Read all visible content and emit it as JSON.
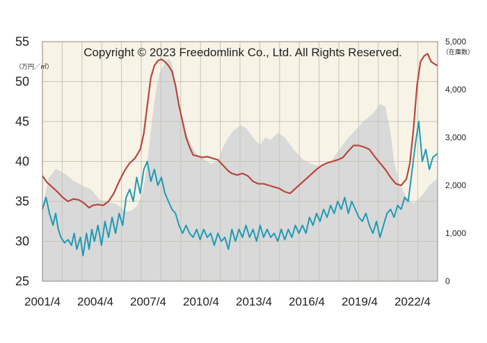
{
  "chart_data": {
    "type": "line",
    "title": "",
    "copyright": "Copyright © 2023 Freedomlink Co., Ltd. All Rights Reserved.",
    "y_left_unit": "（万円／㎡）",
    "y_right_unit": "（在庫数）",
    "y_left_range": [
      25,
      55
    ],
    "y_left_ticks": [
      "25",
      "30",
      "35",
      "40",
      "45",
      "50",
      "55"
    ],
    "y_right_range": [
      0,
      5000
    ],
    "y_right_ticks": [
      "0",
      "1,000",
      "2,000",
      "3,000",
      "4,000",
      "5,000"
    ],
    "x_range": [
      2001.25,
      2023.67
    ],
    "x_ticks": [
      {
        "value": 2001.25,
        "label": "2001/4"
      },
      {
        "value": 2004.25,
        "label": "2004/4"
      },
      {
        "value": 2007.25,
        "label": "2007/4"
      },
      {
        "value": 2010.25,
        "label": "2010/4"
      },
      {
        "value": 2013.25,
        "label": "2013/4"
      },
      {
        "value": 2016.25,
        "label": "2016/4"
      },
      {
        "value": 2019.25,
        "label": "2019/4"
      },
      {
        "value": 2022.25,
        "label": "2022/4"
      }
    ],
    "grid": true,
    "colors": {
      "plot_bg": "#f7f3e6",
      "grid": "#c8c3b8",
      "inventory_area": "#d9d9d9",
      "red_series": "#b8453b",
      "blue_series": "#1e9ab4"
    },
    "series": [
      {
        "kind": "area",
        "axis": "right",
        "points": [
          [
            2001.25,
            1550
          ],
          [
            2001.6,
            2150
          ],
          [
            2002.0,
            2350
          ],
          [
            2002.5,
            2250
          ],
          [
            2003.0,
            2100
          ],
          [
            2003.5,
            2000
          ],
          [
            2004.0,
            1920
          ],
          [
            2004.5,
            1700
          ],
          [
            2005.0,
            1650
          ],
          [
            2005.5,
            1600
          ],
          [
            2006.0,
            1450
          ],
          [
            2006.3,
            1470
          ],
          [
            2006.6,
            1560
          ],
          [
            2006.9,
            1800
          ],
          [
            2007.1,
            2200
          ],
          [
            2007.3,
            2800
          ],
          [
            2007.5,
            3450
          ],
          [
            2007.7,
            4000
          ],
          [
            2007.9,
            4350
          ],
          [
            2008.2,
            4550
          ],
          [
            2008.4,
            4650
          ],
          [
            2008.6,
            4550
          ],
          [
            2008.8,
            4100
          ],
          [
            2009.0,
            3600
          ],
          [
            2009.2,
            3300
          ],
          [
            2009.5,
            3000
          ],
          [
            2009.8,
            2780
          ],
          [
            2010.0,
            2650
          ],
          [
            2010.4,
            2550
          ],
          [
            2010.8,
            2450
          ],
          [
            2011.2,
            2500
          ],
          [
            2011.5,
            2800
          ],
          [
            2011.8,
            3000
          ],
          [
            2012.1,
            3150
          ],
          [
            2012.5,
            3250
          ],
          [
            2012.8,
            3200
          ],
          [
            2013.0,
            3100
          ],
          [
            2013.3,
            2950
          ],
          [
            2013.6,
            2850
          ],
          [
            2013.9,
            3000
          ],
          [
            2014.2,
            2950
          ],
          [
            2014.6,
            3100
          ],
          [
            2015.0,
            3000
          ],
          [
            2015.5,
            2750
          ],
          [
            2016.0,
            2550
          ],
          [
            2016.5,
            2450
          ],
          [
            2017.0,
            2400
          ],
          [
            2017.5,
            2450
          ],
          [
            2018.0,
            2700
          ],
          [
            2018.5,
            2950
          ],
          [
            2019.0,
            3150
          ],
          [
            2019.5,
            3350
          ],
          [
            2020.0,
            3500
          ],
          [
            2020.4,
            3700
          ],
          [
            2020.7,
            3650
          ],
          [
            2021.0,
            3100
          ],
          [
            2021.2,
            2500
          ],
          [
            2021.5,
            2050
          ],
          [
            2021.9,
            1750
          ],
          [
            2022.3,
            1620
          ],
          [
            2022.6,
            1720
          ],
          [
            2022.9,
            1850
          ],
          [
            2023.2,
            2000
          ],
          [
            2023.67,
            2150
          ]
        ]
      },
      {
        "kind": "line",
        "axis": "left",
        "color": "red",
        "points": [
          [
            2001.25,
            38.2
          ],
          [
            2001.5,
            37.4
          ],
          [
            2001.8,
            36.8
          ],
          [
            2002.1,
            36.2
          ],
          [
            2002.4,
            35.5
          ],
          [
            2002.7,
            35.0
          ],
          [
            2003.0,
            35.3
          ],
          [
            2003.3,
            35.2
          ],
          [
            2003.6,
            34.8
          ],
          [
            2003.9,
            34.2
          ],
          [
            2004.1,
            34.5
          ],
          [
            2004.4,
            34.6
          ],
          [
            2004.7,
            34.5
          ],
          [
            2005.0,
            35.0
          ],
          [
            2005.3,
            36.0
          ],
          [
            2005.6,
            37.5
          ],
          [
            2005.9,
            38.8
          ],
          [
            2006.2,
            39.8
          ],
          [
            2006.5,
            40.4
          ],
          [
            2006.8,
            41.5
          ],
          [
            2007.0,
            43.5
          ],
          [
            2007.2,
            47.0
          ],
          [
            2007.4,
            50.5
          ],
          [
            2007.6,
            52.0
          ],
          [
            2007.8,
            52.6
          ],
          [
            2008.0,
            52.8
          ],
          [
            2008.2,
            52.5
          ],
          [
            2008.4,
            52.0
          ],
          [
            2008.6,
            51.3
          ],
          [
            2008.8,
            49.5
          ],
          [
            2009.0,
            47.0
          ],
          [
            2009.2,
            45.0
          ],
          [
            2009.4,
            43.0
          ],
          [
            2009.6,
            41.8
          ],
          [
            2009.8,
            40.8
          ],
          [
            2010.0,
            40.7
          ],
          [
            2010.3,
            40.5
          ],
          [
            2010.6,
            40.6
          ],
          [
            2010.9,
            40.4
          ],
          [
            2011.2,
            40.2
          ],
          [
            2011.5,
            39.5
          ],
          [
            2011.8,
            38.8
          ],
          [
            2012.0,
            38.5
          ],
          [
            2012.3,
            38.3
          ],
          [
            2012.6,
            38.5
          ],
          [
            2012.9,
            38.2
          ],
          [
            2013.2,
            37.5
          ],
          [
            2013.5,
            37.2
          ],
          [
            2013.8,
            37.2
          ],
          [
            2014.1,
            37.0
          ],
          [
            2014.4,
            36.8
          ],
          [
            2014.7,
            36.6
          ],
          [
            2015.0,
            36.2
          ],
          [
            2015.3,
            36.0
          ],
          [
            2015.6,
            36.6
          ],
          [
            2015.9,
            37.2
          ],
          [
            2016.2,
            37.8
          ],
          [
            2016.5,
            38.4
          ],
          [
            2016.8,
            39.0
          ],
          [
            2017.1,
            39.5
          ],
          [
            2017.4,
            39.8
          ],
          [
            2017.7,
            40.0
          ],
          [
            2018.0,
            40.2
          ],
          [
            2018.3,
            40.5
          ],
          [
            2018.6,
            41.3
          ],
          [
            2018.9,
            42.0
          ],
          [
            2019.2,
            42.0
          ],
          [
            2019.5,
            41.8
          ],
          [
            2019.8,
            41.5
          ],
          [
            2020.1,
            40.6
          ],
          [
            2020.4,
            39.8
          ],
          [
            2020.7,
            39.0
          ],
          [
            2021.0,
            38.0
          ],
          [
            2021.3,
            37.2
          ],
          [
            2021.6,
            37.0
          ],
          [
            2021.9,
            37.8
          ],
          [
            2022.1,
            39.8
          ],
          [
            2022.3,
            44.0
          ],
          [
            2022.5,
            49.5
          ],
          [
            2022.7,
            52.5
          ],
          [
            2022.9,
            53.2
          ],
          [
            2023.1,
            53.5
          ],
          [
            2023.3,
            52.5
          ],
          [
            2023.5,
            52.2
          ],
          [
            2023.67,
            52.0
          ]
        ]
      },
      {
        "kind": "line",
        "axis": "left",
        "color": "blue",
        "points": [
          [
            2001.25,
            34.0
          ],
          [
            2001.45,
            35.5
          ],
          [
            2001.65,
            33.5
          ],
          [
            2001.85,
            32.0
          ],
          [
            2002.0,
            33.5
          ],
          [
            2002.15,
            31.5
          ],
          [
            2002.3,
            30.5
          ],
          [
            2002.5,
            29.8
          ],
          [
            2002.7,
            30.2
          ],
          [
            2002.9,
            29.5
          ],
          [
            2003.05,
            31.0
          ],
          [
            2003.2,
            29.0
          ],
          [
            2003.4,
            30.5
          ],
          [
            2003.55,
            28.2
          ],
          [
            2003.75,
            31.0
          ],
          [
            2003.9,
            29.0
          ],
          [
            2004.05,
            31.5
          ],
          [
            2004.2,
            30.0
          ],
          [
            2004.4,
            32.0
          ],
          [
            2004.6,
            29.5
          ],
          [
            2004.8,
            32.5
          ],
          [
            2005.0,
            30.5
          ],
          [
            2005.2,
            33.0
          ],
          [
            2005.4,
            31.0
          ],
          [
            2005.6,
            33.5
          ],
          [
            2005.8,
            32.0
          ],
          [
            2006.0,
            35.5
          ],
          [
            2006.2,
            36.5
          ],
          [
            2006.4,
            35.0
          ],
          [
            2006.6,
            38.0
          ],
          [
            2006.8,
            36.0
          ],
          [
            2007.0,
            39.0
          ],
          [
            2007.2,
            40.0
          ],
          [
            2007.4,
            37.5
          ],
          [
            2007.6,
            39.0
          ],
          [
            2007.8,
            37.0
          ],
          [
            2008.0,
            38.0
          ],
          [
            2008.2,
            36.0
          ],
          [
            2008.4,
            35.0
          ],
          [
            2008.6,
            34.0
          ],
          [
            2008.8,
            33.5
          ],
          [
            2009.0,
            32.0
          ],
          [
            2009.2,
            31.0
          ],
          [
            2009.4,
            32.0
          ],
          [
            2009.6,
            31.0
          ],
          [
            2009.8,
            30.5
          ],
          [
            2010.0,
            31.5
          ],
          [
            2010.2,
            30.2
          ],
          [
            2010.4,
            31.5
          ],
          [
            2010.6,
            30.5
          ],
          [
            2010.8,
            31.0
          ],
          [
            2011.0,
            29.5
          ],
          [
            2011.2,
            31.0
          ],
          [
            2011.4,
            30.0
          ],
          [
            2011.6,
            30.5
          ],
          [
            2011.8,
            29.0
          ],
          [
            2012.0,
            31.5
          ],
          [
            2012.2,
            30.0
          ],
          [
            2012.4,
            31.5
          ],
          [
            2012.6,
            30.5
          ],
          [
            2012.8,
            32.0
          ],
          [
            2013.0,
            30.5
          ],
          [
            2013.2,
            31.5
          ],
          [
            2013.4,
            30.0
          ],
          [
            2013.6,
            32.0
          ],
          [
            2013.8,
            30.5
          ],
          [
            2014.0,
            31.5
          ],
          [
            2014.2,
            30.5
          ],
          [
            2014.4,
            31.0
          ],
          [
            2014.6,
            30.0
          ],
          [
            2014.8,
            31.5
          ],
          [
            2015.0,
            30.2
          ],
          [
            2015.2,
            31.5
          ],
          [
            2015.4,
            30.5
          ],
          [
            2015.6,
            32.0
          ],
          [
            2015.8,
            31.0
          ],
          [
            2016.0,
            32.0
          ],
          [
            2016.2,
            31.0
          ],
          [
            2016.4,
            33.0
          ],
          [
            2016.6,
            32.0
          ],
          [
            2016.8,
            33.5
          ],
          [
            2017.0,
            32.5
          ],
          [
            2017.2,
            34.0
          ],
          [
            2017.4,
            33.0
          ],
          [
            2017.6,
            34.5
          ],
          [
            2017.8,
            33.5
          ],
          [
            2018.0,
            35.0
          ],
          [
            2018.2,
            34.0
          ],
          [
            2018.4,
            35.5
          ],
          [
            2018.6,
            33.5
          ],
          [
            2018.8,
            35.0
          ],
          [
            2019.0,
            34.0
          ],
          [
            2019.2,
            33.0
          ],
          [
            2019.4,
            32.5
          ],
          [
            2019.6,
            33.5
          ],
          [
            2019.8,
            32.0
          ],
          [
            2020.0,
            31.0
          ],
          [
            2020.2,
            32.5
          ],
          [
            2020.4,
            30.5
          ],
          [
            2020.6,
            32.0
          ],
          [
            2020.8,
            33.5
          ],
          [
            2021.0,
            34.0
          ],
          [
            2021.2,
            33.0
          ],
          [
            2021.4,
            34.5
          ],
          [
            2021.6,
            34.0
          ],
          [
            2021.8,
            35.5
          ],
          [
            2022.0,
            35.0
          ],
          [
            2022.2,
            38.5
          ],
          [
            2022.4,
            42.0
          ],
          [
            2022.6,
            45.0
          ],
          [
            2022.8,
            40.0
          ],
          [
            2023.0,
            41.5
          ],
          [
            2023.2,
            39.0
          ],
          [
            2023.4,
            40.5
          ],
          [
            2023.67,
            41.0
          ]
        ]
      }
    ]
  }
}
